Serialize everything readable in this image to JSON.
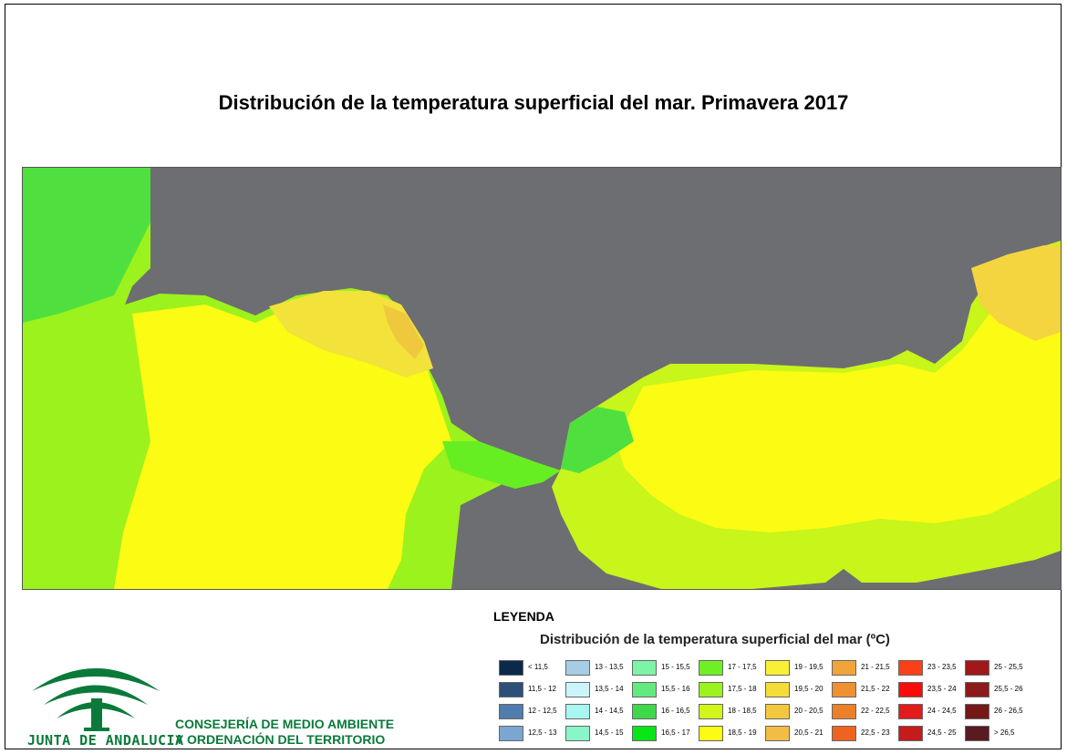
{
  "title": "Distribución de la temperatura superficial del mar. Primavera 2017",
  "legend": {
    "heading": "LEYENDA",
    "subtitle": "Distribución de la temperatura superficial del mar (ºC)",
    "columns": [
      [
        {
          "label": "< 11,5",
          "color": "#0b2a4a"
        },
        {
          "label": "11,5 - 12",
          "color": "#2d5078"
        },
        {
          "label": "12 - 12,5",
          "color": "#4f7dad"
        },
        {
          "label": "12,5 - 13",
          "color": "#7aa6d1"
        }
      ],
      [
        {
          "label": "13 - 13,5",
          "color": "#a7cde5"
        },
        {
          "label": "13,5 - 14",
          "color": "#ccf4fb"
        },
        {
          "label": "14 - 14,5",
          "color": "#a8f6f2"
        },
        {
          "label": "14,5 - 15",
          "color": "#8af5c8"
        }
      ],
      [
        {
          "label": "15 - 15,5",
          "color": "#7df3a8"
        },
        {
          "label": "15,5 - 16",
          "color": "#63ea7e"
        },
        {
          "label": "16 - 16,5",
          "color": "#3fd84b"
        },
        {
          "label": "16,5 - 17",
          "color": "#0ae51a"
        }
      ],
      [
        {
          "label": "17 - 17,5",
          "color": "#6ef025"
        },
        {
          "label": "17,5 - 18",
          "color": "#9cf21c"
        },
        {
          "label": "18 - 18,5",
          "color": "#d2f51a"
        },
        {
          "label": "18,5 - 19",
          "color": "#fbfb13"
        }
      ],
      [
        {
          "label": "19 - 19,5",
          "color": "#f8f034"
        },
        {
          "label": "19,5 - 20",
          "color": "#f6dc38"
        },
        {
          "label": "20 - 20,5",
          "color": "#f4c83e"
        },
        {
          "label": "20,5 - 21",
          "color": "#f3bc46"
        }
      ],
      [
        {
          "label": "21 - 21,5",
          "color": "#f1a43a"
        },
        {
          "label": "21,5 - 22",
          "color": "#ef9032"
        },
        {
          "label": "22 - 22,5",
          "color": "#ec8028"
        },
        {
          "label": "22,5 - 23",
          "color": "#ef6320"
        }
      ],
      [
        {
          "label": "23 - 23,5",
          "color": "#fb4018"
        },
        {
          "label": "23,5 - 24",
          "color": "#fc0a0a"
        },
        {
          "label": "24 - 24,5",
          "color": "#e41b1b"
        },
        {
          "label": "24,5 - 25",
          "color": "#c41b1b"
        }
      ],
      [
        {
          "label": "25 - 25,5",
          "color": "#a01818"
        },
        {
          "label": "25,5 - 26",
          "color": "#8d1a1a"
        },
        {
          "label": "26 - 26,5",
          "color": "#741818"
        },
        {
          "label": "> 26,5",
          "color": "#5a1a22"
        }
      ]
    ]
  },
  "logo": {
    "brand_text": "JUNTA DE ANDALUCIA",
    "brand_color": "#0a7a3a"
  },
  "organization": {
    "line1": "CONSEJERÍA DE MEDIO AMBIENTE",
    "line2": "Y ORDENACIÓN DEL TERRITORIO"
  },
  "map_colors": {
    "land": "#6d6e72",
    "sea_low": "#66ee22",
    "sea_mid": "#c8f51a",
    "sea_high": "#fbfb13",
    "sea_warm": "#f4d540"
  }
}
